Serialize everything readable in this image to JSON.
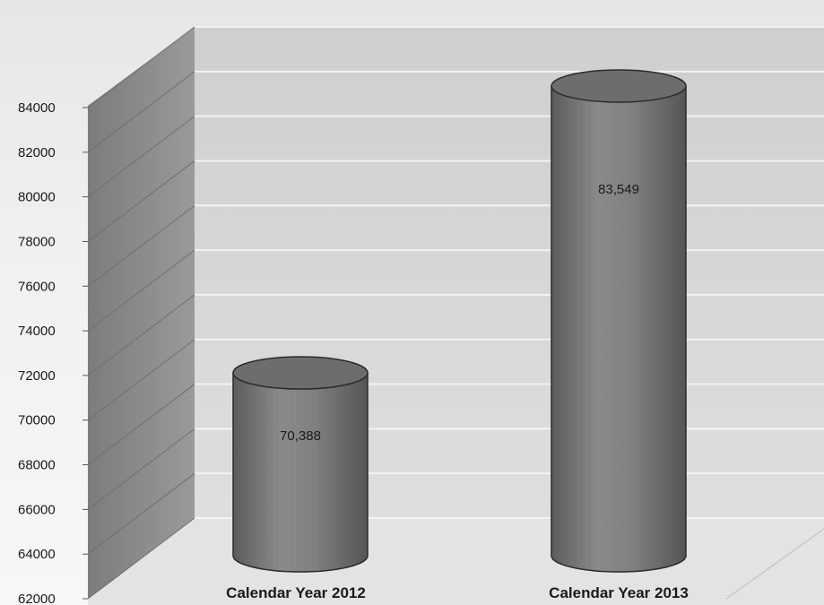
{
  "chart_data": {
    "type": "bar",
    "style": "3d-cylinder",
    "categories": [
      "Calendar Year 2012",
      "Calendar Year 2013"
    ],
    "values": [
      70388,
      83549
    ],
    "data_labels": [
      "70,388",
      "83,549"
    ],
    "y_ticks": [
      "62000",
      "64000",
      "66000",
      "68000",
      "70000",
      "72000",
      "74000",
      "76000",
      "78000",
      "80000",
      "82000",
      "84000"
    ],
    "ylim": [
      62000,
      84000
    ],
    "grid": true,
    "title": "",
    "xlabel": "",
    "ylabel": "",
    "colors": {
      "cylinder": "#7a7a7a",
      "wall": "#d6d6d6",
      "side_wall": "#8c8c8c",
      "floor": "#e4e4e4",
      "grid": "#f4f4f4"
    }
  }
}
